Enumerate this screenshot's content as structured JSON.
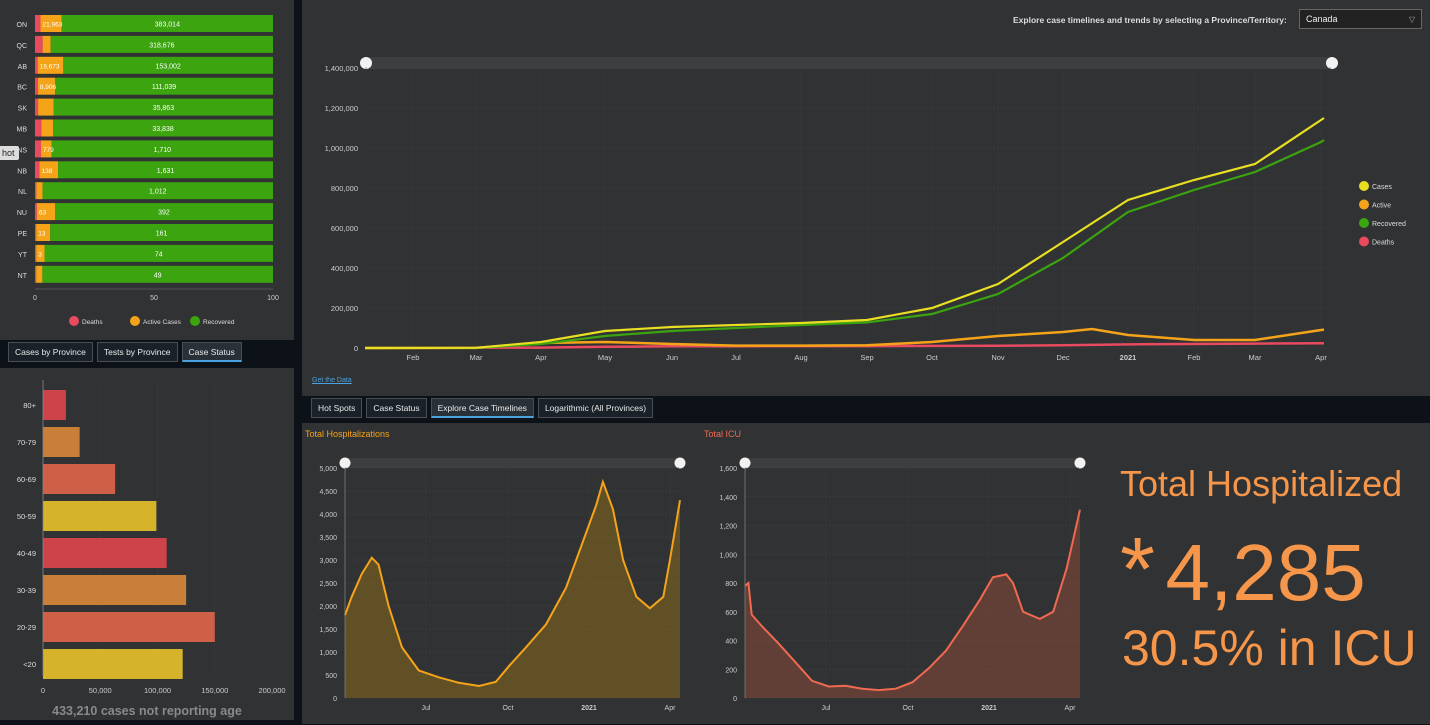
{
  "province_chart": {
    "provinces": [
      {
        "code": "ON",
        "active": "21,963",
        "recovered": "383,014",
        "deaths_pct": 2.3,
        "active_pct": 8.9
      },
      {
        "code": "QC",
        "active": "",
        "recovered": "318,676",
        "deaths_pct": 3.2,
        "active_pct": 3.4
      },
      {
        "code": "AB",
        "active": "19,673",
        "recovered": "153,002",
        "deaths_pct": 1.1,
        "active_pct": 10.8
      },
      {
        "code": "BC",
        "active": "8,906",
        "recovered": "111,039",
        "deaths_pct": 1.2,
        "active_pct": 7.2
      },
      {
        "code": "SK",
        "active": "",
        "recovered": "35,863",
        "deaths_pct": 1.3,
        "active_pct": 6.6
      },
      {
        "code": "MB",
        "active": "",
        "recovered": "33,838",
        "deaths_pct": 2.7,
        "active_pct": 4.9
      },
      {
        "code": "NS",
        "active": "779",
        "recovered": "1,710",
        "deaths_pct": 2.5,
        "active_pct": 4.5
      },
      {
        "code": "NB",
        "active": "138",
        "recovered": "1,631",
        "deaths_pct": 1.9,
        "active_pct": 7.8
      },
      {
        "code": "NL",
        "active": "",
        "recovered": "1,012",
        "deaths_pct": 0.6,
        "active_pct": 2.6
      },
      {
        "code": "NU",
        "active": "63",
        "recovered": "392",
        "deaths_pct": 0.8,
        "active_pct": 7.6
      },
      {
        "code": "PE",
        "active": "13",
        "recovered": "161",
        "deaths_pct": 0.5,
        "active_pct": 5.9
      },
      {
        "code": "YT",
        "active": "3",
        "recovered": "74",
        "deaths_pct": 0.5,
        "active_pct": 3.5
      },
      {
        "code": "NT",
        "active": "",
        "recovered": "49",
        "deaths_pct": 0.5,
        "active_pct": 2.6
      }
    ],
    "xticks": [
      "0",
      "50",
      "100"
    ],
    "legend": [
      {
        "label": "Deaths",
        "color": "#e84a5f"
      },
      {
        "label": "Active Cases",
        "color": "#f5a41a"
      },
      {
        "label": "Recovered",
        "color": "#3ba40f"
      }
    ],
    "hover_label": "hot"
  },
  "province_tabs": [
    {
      "label": "Cases by Province",
      "active": false
    },
    {
      "label": "Tests by Province",
      "active": false
    },
    {
      "label": "Case Status",
      "active": true
    }
  ],
  "header": {
    "prompt": "Explore case timelines and trends by selecting a Province/Territory:",
    "selected": "Canada"
  },
  "timeline": {
    "yticks": [
      "1,400,000",
      "1,200,000",
      "1,000,000",
      "800,000",
      "600,000",
      "400,000",
      "200,000",
      "0"
    ],
    "xticks": [
      "Feb",
      "Mar",
      "Apr",
      "May",
      "Jun",
      "Jul",
      "Aug",
      "Sep",
      "Oct",
      "Nov",
      "Dec",
      "2021",
      "Feb",
      "Mar",
      "Apr"
    ],
    "legend": [
      {
        "label": "Cases",
        "color": "#e8de22"
      },
      {
        "label": "Active",
        "color": "#f5a41a"
      },
      {
        "label": "Recovered",
        "color": "#3ba40f"
      },
      {
        "label": "Deaths",
        "color": "#e84a5f"
      }
    ],
    "get_data_link": "Get the Data"
  },
  "main_tabs": [
    {
      "label": "Hot Spots",
      "active": false
    },
    {
      "label": "Case Status",
      "active": false
    },
    {
      "label": "Explore Case Timelines",
      "active": true
    },
    {
      "label": "Logarithmic (All Provinces)",
      "active": false
    }
  ],
  "age_chart": {
    "groups": [
      {
        "label": "80+",
        "value": 20000,
        "color": "#e0454c"
      },
      {
        "label": "70-79",
        "value": 32000,
        "color": "#d9883a"
      },
      {
        "label": "60-69",
        "value": 63000,
        "color": "#e0654a"
      },
      {
        "label": "50-59",
        "value": 99000,
        "color": "#e8c22a"
      },
      {
        "label": "40-49",
        "value": 108000,
        "color": "#e0454c"
      },
      {
        "label": "30-39",
        "value": 125000,
        "color": "#d9883a"
      },
      {
        "label": "20-29",
        "value": 150000,
        "color": "#e0654a"
      },
      {
        "label": "<20",
        "value": 122000,
        "color": "#e8c22a"
      }
    ],
    "xticks": [
      "0",
      "50,000",
      "100,000",
      "150,000",
      "200,000"
    ],
    "footer": "433,210 cases not reporting age"
  },
  "hosp_chart": {
    "title": "Total Hospitalizations",
    "yticks": [
      "5,000",
      "4,500",
      "4,000",
      "3,500",
      "3,000",
      "2,500",
      "2,000",
      "1,500",
      "1,000",
      "500",
      "0"
    ],
    "xticks": [
      "Jul",
      "Oct",
      "2021",
      "Apr"
    ]
  },
  "icu_chart": {
    "title": "Total ICU",
    "yticks": [
      "1,600",
      "1,400",
      "1,200",
      "1,000",
      "800",
      "600",
      "400",
      "200",
      "0"
    ],
    "xticks": [
      "Jul",
      "Oct",
      "2021",
      "Apr"
    ]
  },
  "summary": {
    "title": "Total Hospitalized",
    "asterisk": "*",
    "total": "4,285",
    "icu_line": "30.5% in ICU"
  }
}
